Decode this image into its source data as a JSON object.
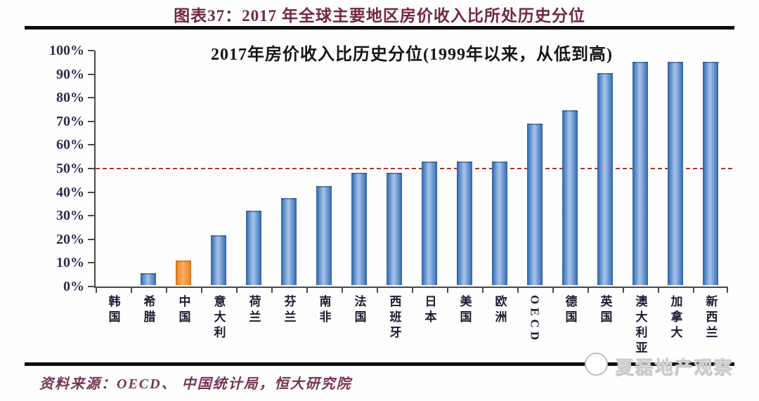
{
  "header": {
    "title": "图表37：2017 年全球主要地区房价收入比所处历史分位"
  },
  "chart_data": {
    "type": "bar",
    "title": "2017年房价收入比历史分位(1999年以来，从低到高)",
    "categories": [
      "韩国",
      "希腊",
      "中国",
      "意大利",
      "荷兰",
      "芬兰",
      "南非",
      "法国",
      "西班牙",
      "日本",
      "美国",
      "欧洲",
      "OECD",
      "德国",
      "英国",
      "澳大利亚",
      "加拿大",
      "新西兰"
    ],
    "values": [
      0,
      5,
      10.5,
      21,
      31.5,
      37,
      42,
      47.5,
      47.5,
      52.5,
      52.5,
      52.5,
      68.5,
      74,
      90,
      94.5,
      94.5,
      94.5
    ],
    "highlight_index": 2,
    "bar_color": "#4f83c4",
    "highlight_color": "#f0933a",
    "reference_line": {
      "value": 50,
      "color": "#a8372b",
      "style": "dashed"
    },
    "ylim": [
      0,
      100
    ],
    "ytick_step": 10,
    "ytick_suffix": "%",
    "xlabel": "",
    "ylabel": "",
    "grid": false,
    "legend": null
  },
  "footer": {
    "source": "资料来源：OECD、 中国统计局，恒大研究院"
  },
  "watermark": {
    "text": "夏磊地产观察"
  }
}
